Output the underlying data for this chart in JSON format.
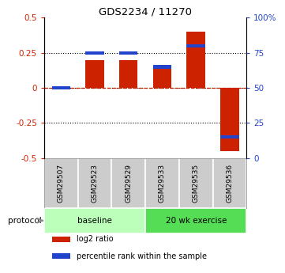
{
  "title": "GDS2234 / 11270",
  "samples": [
    "GSM29507",
    "GSM29523",
    "GSM29529",
    "GSM29533",
    "GSM29535",
    "GSM29536"
  ],
  "log2_ratio": [
    0.0,
    0.2,
    0.2,
    0.14,
    0.4,
    -0.45
  ],
  "percentile_rank": [
    50,
    75,
    75,
    65,
    80,
    15
  ],
  "bar_color_red": "#cc2200",
  "bar_color_blue": "#2244cc",
  "ylim_left": [
    -0.5,
    0.5
  ],
  "ylim_right": [
    0,
    100
  ],
  "yticks_left": [
    -0.5,
    -0.25,
    0,
    0.25,
    0.5
  ],
  "yticks_right": [
    0,
    25,
    50,
    75,
    100
  ],
  "ytick_labels_right": [
    "0",
    "25",
    "50",
    "75",
    "100%"
  ],
  "dotted_hlines": [
    0.25,
    -0.25
  ],
  "protocol_groups": [
    {
      "label": "baseline",
      "start": 0,
      "end": 3,
      "color": "#bbffbb"
    },
    {
      "label": "20 wk exercise",
      "start": 3,
      "end": 6,
      "color": "#55dd55"
    }
  ],
  "protocol_label": "protocol",
  "legend_items": [
    {
      "color": "#cc2200",
      "label": "log2 ratio"
    },
    {
      "color": "#2244cc",
      "label": "percentile rank within the sample"
    }
  ],
  "bar_width": 0.55,
  "bg_color": "#ffffff",
  "plot_bg": "#ffffff",
  "label_bg": "#cccccc"
}
